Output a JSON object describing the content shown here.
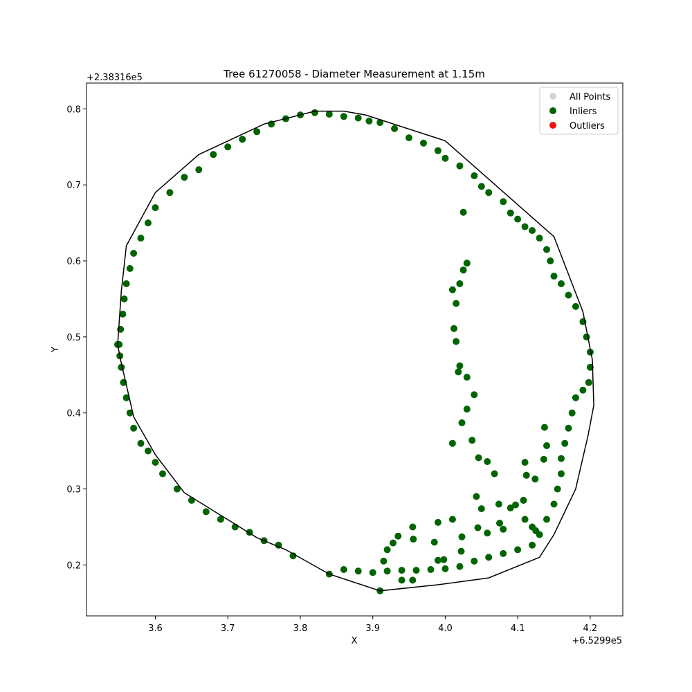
{
  "chart_data": {
    "type": "scatter",
    "title": "Tree 61270058 - Diameter Measurement at 1.15m",
    "xlabel": "X",
    "ylabel": "Y",
    "x_offset_label": "+6.5299e5",
    "y_offset_label": "+2.38316e5",
    "xlim": [
      3.505,
      4.245
    ],
    "ylim": [
      0.133,
      0.834
    ],
    "x_ticks": [
      3.6,
      3.7,
      3.8,
      3.9,
      4.0,
      4.1,
      4.2
    ],
    "x_tick_labels": [
      "3.6",
      "3.7",
      "3.8",
      "3.9",
      "4.0",
      "4.1",
      "4.2"
    ],
    "y_ticks": [
      0.2,
      0.3,
      0.4,
      0.5,
      0.6,
      0.7,
      0.8
    ],
    "y_tick_labels": [
      "0.2",
      "0.3",
      "0.4",
      "0.5",
      "0.6",
      "0.7",
      "0.8"
    ],
    "grid": false,
    "legend_position": "top-right",
    "legend": [
      {
        "name": "All Points",
        "color": "#d3d3d3"
      },
      {
        "name": "Inliers",
        "color": "#006400"
      },
      {
        "name": "Outliers",
        "color": "#ee1111"
      }
    ],
    "hull": {
      "color": "#000000",
      "points": [
        [
          3.56,
          0.62
        ],
        [
          3.6,
          0.69
        ],
        [
          3.66,
          0.74
        ],
        [
          3.75,
          0.78
        ],
        [
          3.82,
          0.797
        ],
        [
          3.86,
          0.797
        ],
        [
          3.89,
          0.792
        ],
        [
          4.0,
          0.758
        ],
        [
          4.15,
          0.632
        ],
        [
          4.19,
          0.533
        ],
        [
          4.203,
          0.47
        ],
        [
          4.205,
          0.41
        ],
        [
          4.197,
          0.37
        ],
        [
          4.18,
          0.3
        ],
        [
          4.15,
          0.24
        ],
        [
          4.13,
          0.21
        ],
        [
          4.06,
          0.183
        ],
        [
          3.99,
          0.174
        ],
        [
          3.91,
          0.166
        ],
        [
          3.84,
          0.188
        ],
        [
          3.78,
          0.22
        ],
        [
          3.74,
          0.236
        ],
        [
          3.64,
          0.295
        ],
        [
          3.6,
          0.345
        ],
        [
          3.57,
          0.395
        ],
        [
          3.552,
          0.47
        ],
        [
          3.548,
          0.49
        ],
        [
          3.553,
          0.56
        ]
      ]
    },
    "series": [
      {
        "name": "Inliers",
        "color": "#006400",
        "points": [
          [
            3.55,
            0.49
          ],
          [
            3.552,
            0.51
          ],
          [
            3.555,
            0.53
          ],
          [
            3.557,
            0.55
          ],
          [
            3.56,
            0.57
          ],
          [
            3.565,
            0.59
          ],
          [
            3.57,
            0.61
          ],
          [
            3.58,
            0.63
          ],
          [
            3.59,
            0.65
          ],
          [
            3.6,
            0.67
          ],
          [
            3.62,
            0.69
          ],
          [
            3.64,
            0.71
          ],
          [
            3.66,
            0.72
          ],
          [
            3.68,
            0.74
          ],
          [
            3.7,
            0.75
          ],
          [
            3.72,
            0.76
          ],
          [
            3.74,
            0.77
          ],
          [
            3.76,
            0.78
          ],
          [
            3.78,
            0.787
          ],
          [
            3.8,
            0.792
          ],
          [
            3.82,
            0.795
          ],
          [
            3.84,
            0.793
          ],
          [
            3.86,
            0.79
          ],
          [
            3.88,
            0.788
          ],
          [
            3.895,
            0.784
          ],
          [
            3.91,
            0.782
          ],
          [
            3.93,
            0.774
          ],
          [
            3.95,
            0.762
          ],
          [
            3.97,
            0.755
          ],
          [
            3.99,
            0.745
          ],
          [
            4.0,
            0.735
          ],
          [
            4.02,
            0.725
          ],
          [
            4.04,
            0.712
          ],
          [
            4.05,
            0.698
          ],
          [
            4.06,
            0.69
          ],
          [
            4.08,
            0.678
          ],
          [
            4.09,
            0.663
          ],
          [
            4.1,
            0.655
          ],
          [
            4.11,
            0.645
          ],
          [
            4.12,
            0.64
          ],
          [
            4.13,
            0.63
          ],
          [
            4.14,
            0.615
          ],
          [
            4.145,
            0.6
          ],
          [
            4.15,
            0.58
          ],
          [
            4.16,
            0.57
          ],
          [
            4.17,
            0.555
          ],
          [
            4.18,
            0.54
          ],
          [
            4.19,
            0.52
          ],
          [
            4.195,
            0.5
          ],
          [
            4.2,
            0.48
          ],
          [
            4.2,
            0.46
          ],
          [
            4.198,
            0.44
          ],
          [
            4.19,
            0.43
          ],
          [
            4.18,
            0.42
          ],
          [
            4.175,
            0.4
          ],
          [
            4.17,
            0.38
          ],
          [
            4.165,
            0.36
          ],
          [
            4.16,
            0.34
          ],
          [
            4.16,
            0.32
          ],
          [
            4.155,
            0.3
          ],
          [
            4.15,
            0.28
          ],
          [
            4.14,
            0.26
          ],
          [
            4.13,
            0.24
          ],
          [
            4.12,
            0.226
          ],
          [
            4.1,
            0.22
          ],
          [
            4.08,
            0.215
          ],
          [
            4.06,
            0.21
          ],
          [
            4.04,
            0.205
          ],
          [
            4.02,
            0.198
          ],
          [
            4.0,
            0.195
          ],
          [
            3.98,
            0.194
          ],
          [
            3.96,
            0.193
          ],
          [
            3.94,
            0.193
          ],
          [
            3.92,
            0.192
          ],
          [
            3.9,
            0.19
          ],
          [
            3.88,
            0.192
          ],
          [
            3.86,
            0.194
          ],
          [
            3.84,
            0.188
          ],
          [
            3.79,
            0.212
          ],
          [
            3.77,
            0.226
          ],
          [
            3.75,
            0.232
          ],
          [
            3.73,
            0.243
          ],
          [
            3.71,
            0.25
          ],
          [
            3.69,
            0.26
          ],
          [
            3.67,
            0.27
          ],
          [
            3.65,
            0.285
          ],
          [
            3.63,
            0.3
          ],
          [
            3.61,
            0.32
          ],
          [
            3.6,
            0.335
          ],
          [
            3.59,
            0.35
          ],
          [
            3.58,
            0.36
          ],
          [
            3.57,
            0.38
          ],
          [
            3.565,
            0.4
          ],
          [
            3.56,
            0.42
          ],
          [
            3.556,
            0.44
          ],
          [
            3.553,
            0.46
          ],
          [
            3.551,
            0.475
          ],
          [
            3.548,
            0.49
          ],
          [
            4.025,
            0.664
          ],
          [
            4.03,
            0.597
          ],
          [
            4.025,
            0.588
          ],
          [
            4.02,
            0.57
          ],
          [
            4.01,
            0.562
          ],
          [
            4.015,
            0.544
          ],
          [
            4.012,
            0.511
          ],
          [
            4.015,
            0.494
          ],
          [
            4.02,
            0.462
          ],
          [
            4.018,
            0.454
          ],
          [
            4.03,
            0.447
          ],
          [
            4.04,
            0.424
          ],
          [
            4.03,
            0.405
          ],
          [
            4.023,
            0.387
          ],
          [
            4.037,
            0.364
          ],
          [
            4.01,
            0.36
          ],
          [
            4.046,
            0.341
          ],
          [
            4.058,
            0.336
          ],
          [
            4.068,
            0.32
          ],
          [
            4.043,
            0.29
          ],
          [
            4.05,
            0.274
          ],
          [
            4.074,
            0.28
          ],
          [
            4.09,
            0.275
          ],
          [
            4.08,
            0.247
          ],
          [
            4.058,
            0.242
          ],
          [
            4.045,
            0.249
          ],
          [
            4.01,
            0.26
          ],
          [
            4.023,
            0.237
          ],
          [
            4.022,
            0.218
          ],
          [
            3.955,
            0.25
          ],
          [
            3.935,
            0.238
          ],
          [
            3.928,
            0.229
          ],
          [
            3.956,
            0.234
          ],
          [
            3.985,
            0.23
          ],
          [
            3.99,
            0.256
          ],
          [
            3.99,
            0.206
          ],
          [
            3.998,
            0.207
          ],
          [
            4.137,
            0.381
          ],
          [
            4.14,
            0.357
          ],
          [
            4.136,
            0.339
          ],
          [
            4.11,
            0.335
          ],
          [
            4.112,
            0.318
          ],
          [
            4.124,
            0.313
          ],
          [
            4.108,
            0.285
          ],
          [
            4.097,
            0.279
          ],
          [
            4.11,
            0.26
          ],
          [
            4.12,
            0.25
          ],
          [
            4.125,
            0.245
          ],
          [
            4.075,
            0.255
          ],
          [
            3.91,
            0.166
          ],
          [
            3.94,
            0.18
          ],
          [
            3.92,
            0.22
          ],
          [
            3.915,
            0.205
          ],
          [
            3.955,
            0.18
          ]
        ]
      }
    ]
  }
}
